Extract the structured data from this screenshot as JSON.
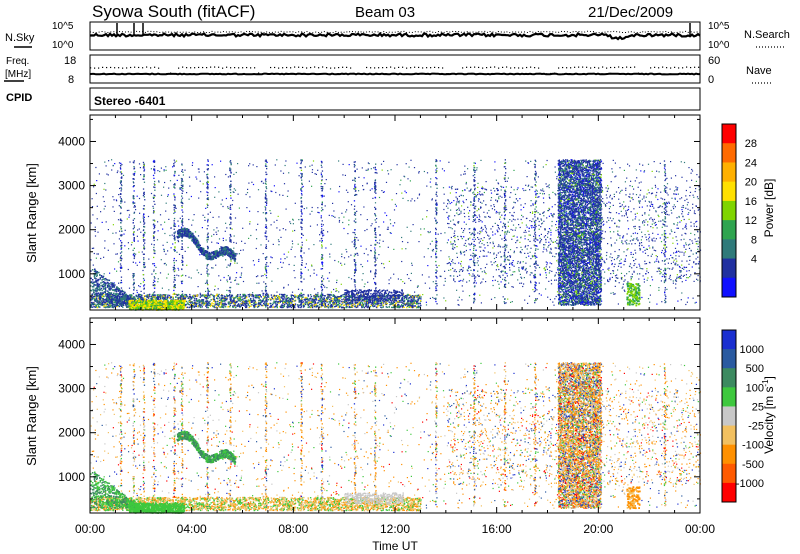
{
  "header": {
    "title": "Syowa South (fitACF)",
    "beam": "Beam 03",
    "date": "21/Dec/2009"
  },
  "top_panel": {
    "left_label": "N.Sky",
    "right_label": "N.Search",
    "left_ticks": [
      "10^5",
      "10^0"
    ],
    "right_ticks": [
      "10^5",
      "10^0"
    ]
  },
  "freq_panel": {
    "left_label_1": "Freq.",
    "left_label_2": "[MHz]",
    "right_label": "Nave",
    "left_ticks": [
      "18",
      "8"
    ],
    "right_ticks": [
      "60",
      "0"
    ]
  },
  "cpid": {
    "label": "CPID",
    "value": "Stereo -6401"
  },
  "colorbars": {
    "power": {
      "label": "Power [dB]",
      "ticks": [
        "28",
        "24",
        "20",
        "16",
        "12",
        "8",
        "4"
      ],
      "colors": [
        "#ff0000",
        "#ff6a00",
        "#ffb000",
        "#ffe000",
        "#7fd400",
        "#2fa44f",
        "#2f7a7a",
        "#2030a0",
        "#1010ff"
      ]
    },
    "velocity": {
      "label": "Velocity [m s",
      "label_sup": "-1",
      "label_end": "]",
      "ticks": [
        "1000",
        "500",
        "100",
        "25",
        "-25",
        "-100",
        "-500",
        "-1000"
      ],
      "colors": [
        "#1a2fd0",
        "#2a5aa0",
        "#3c8a60",
        "#3ec83e",
        "#c8c8c8",
        "#f2c060",
        "#ff9000",
        "#ff5a00",
        "#ff0000"
      ]
    }
  },
  "axes": {
    "ylabel": "Slant Range [km]",
    "xlabel": "Time UT",
    "y_ticks": [
      "4000",
      "3000",
      "2000",
      "1000"
    ],
    "x_ticks": [
      "00:00",
      "04:00",
      "08:00",
      "12:00",
      "16:00",
      "20:00",
      "00:00"
    ]
  },
  "chart_data": [
    {
      "type": "heatmap",
      "name": "power",
      "xlabel": "Time UT",
      "ylabel": "Slant Range [km]",
      "x_range_hours": [
        0,
        24
      ],
      "y_range_km": [
        180,
        4600
      ],
      "color_range_db": [
        0,
        30
      ]
    },
    {
      "type": "heatmap",
      "name": "velocity",
      "xlabel": "Time UT",
      "ylabel": "Slant Range [km]",
      "x_range_hours": [
        0,
        24
      ],
      "y_range_km": [
        180,
        4600
      ],
      "color_range_ms": [
        -1000,
        1000
      ]
    }
  ]
}
